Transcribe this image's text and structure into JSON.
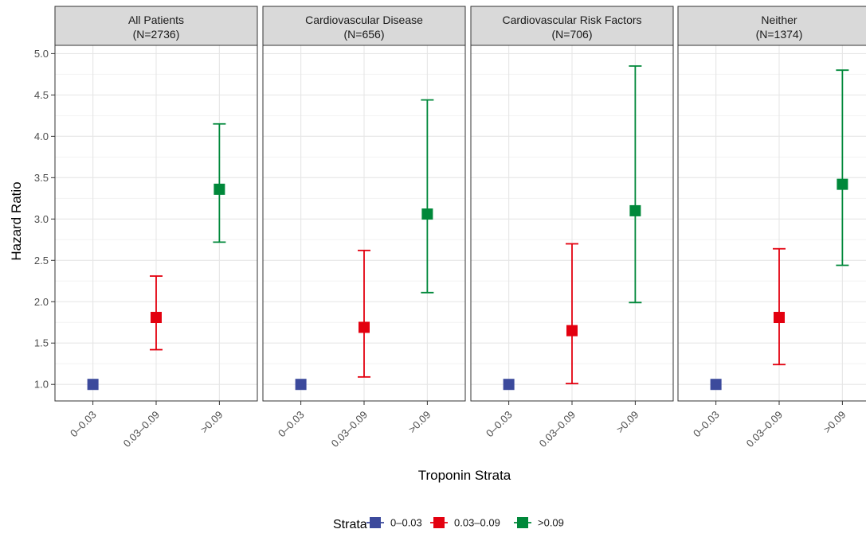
{
  "chart_data": {
    "type": "scatter",
    "ylabel": "Hazard Ratio",
    "xlabel": "Troponin Strata",
    "ylim": [
      0.8,
      5.1
    ],
    "y_ticks": [
      1.0,
      1.5,
      2.0,
      2.5,
      3.0,
      3.5,
      4.0,
      4.5,
      5.0
    ],
    "y_tick_labels": [
      "1.0",
      "1.5",
      "2.0",
      "2.5",
      "3.0",
      "3.5",
      "4.0",
      "4.5",
      "5.0"
    ],
    "categories": [
      "0–0.03",
      "0.03–0.09",
      ">0.09"
    ],
    "grid": true,
    "legend": {
      "title": "Strata",
      "position": "bottom",
      "entries": [
        {
          "label": "0–0.03",
          "color": "#3c4a9c"
        },
        {
          "label": "0.03–0.09",
          "color": "#e3000f"
        },
        {
          "label": ">0.09",
          "color": "#00883a"
        }
      ]
    },
    "panels": [
      {
        "title": "All Patients",
        "subtitle": "(N=2736)",
        "points": [
          {
            "category": "0–0.03",
            "hr": 1.0,
            "lower": null,
            "upper": null
          },
          {
            "category": "0.03–0.09",
            "hr": 1.81,
            "lower": 1.42,
            "upper": 2.31
          },
          {
            "category": ">0.09",
            "hr": 3.36,
            "lower": 2.72,
            "upper": 4.15
          }
        ]
      },
      {
        "title": "Cardiovascular Disease",
        "subtitle": "(N=656)",
        "points": [
          {
            "category": "0–0.03",
            "hr": 1.0,
            "lower": null,
            "upper": null
          },
          {
            "category": "0.03–0.09",
            "hr": 1.69,
            "lower": 1.09,
            "upper": 2.62
          },
          {
            "category": ">0.09",
            "hr": 3.06,
            "lower": 2.11,
            "upper": 4.44
          }
        ]
      },
      {
        "title": "Cardiovascular Risk Factors",
        "subtitle": "(N=706)",
        "points": [
          {
            "category": "0–0.03",
            "hr": 1.0,
            "lower": null,
            "upper": null
          },
          {
            "category": "0.03–0.09",
            "hr": 1.65,
            "lower": 1.01,
            "upper": 2.7
          },
          {
            "category": ">0.09",
            "hr": 3.1,
            "lower": 1.99,
            "upper": 4.85
          }
        ]
      },
      {
        "title": "Neither",
        "subtitle": "(N=1374)",
        "points": [
          {
            "category": "0–0.03",
            "hr": 1.0,
            "lower": null,
            "upper": null
          },
          {
            "category": "0.03–0.09",
            "hr": 1.81,
            "lower": 1.24,
            "upper": 2.64
          },
          {
            "category": ">0.09",
            "hr": 3.42,
            "lower": 2.44,
            "upper": 4.8
          }
        ]
      }
    ]
  }
}
